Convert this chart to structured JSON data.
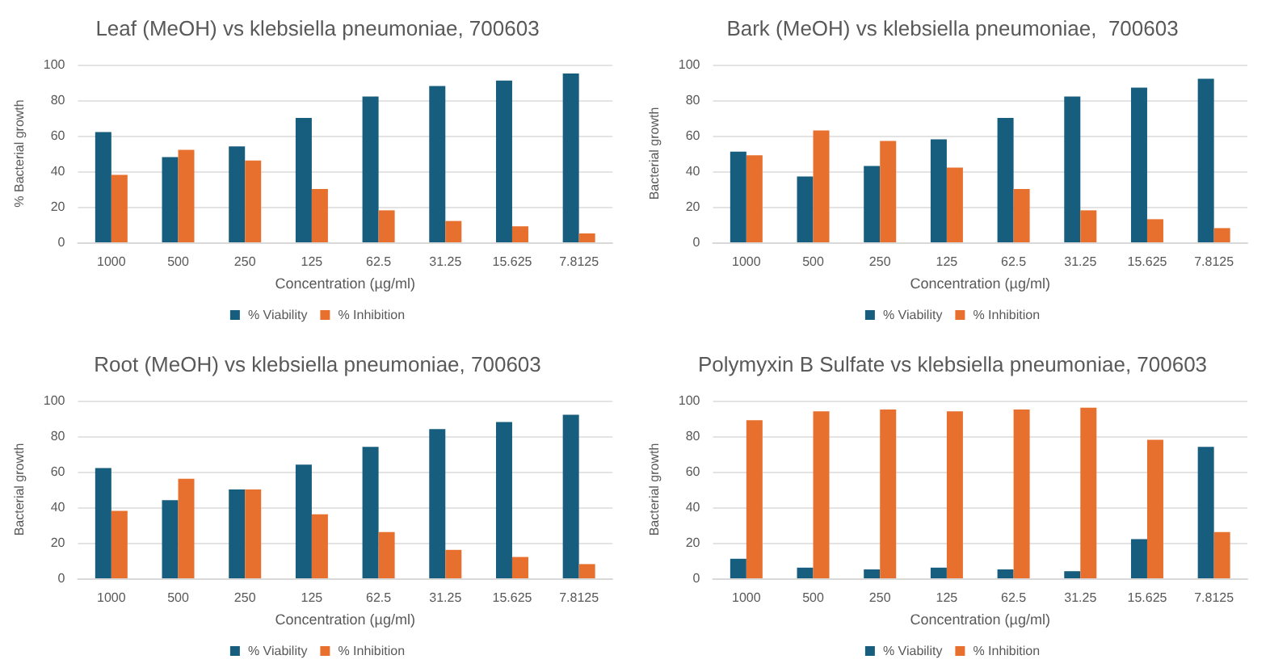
{
  "chart_data": [
    {
      "type": "bar",
      "title": "Leaf (MeOH) vs klebsiella pneumoniae, 700603",
      "xlabel": "Concentration (µg/ml)",
      "ylabel": "% Bacterial growth",
      "categories": [
        "1000",
        "500",
        "250",
        "125",
        "62.5",
        "31.25",
        "15.625",
        "7.8125"
      ],
      "series": [
        {
          "name": "% Viability",
          "color": "#175e7e",
          "values": [
            62,
            48,
            54,
            70,
            82,
            88,
            91,
            95
          ]
        },
        {
          "name": "% Inhibition",
          "color": "#e8702e",
          "values": [
            38,
            52,
            46,
            30,
            18,
            12,
            9,
            5
          ]
        }
      ],
      "ylim": [
        0,
        100
      ],
      "yticks": [
        0,
        20,
        40,
        60,
        80,
        100
      ],
      "grid": "y",
      "legend": "bottom"
    },
    {
      "type": "bar",
      "title": "Bark (MeOH) vs klebsiella pneumoniae,  700603",
      "xlabel": "Concentration (µg/ml)",
      "ylabel": "Bacterial growth",
      "categories": [
        "1000",
        "500",
        "250",
        "125",
        "62.5",
        "31.25",
        "15.625",
        "7.8125"
      ],
      "series": [
        {
          "name": "% Viability",
          "color": "#175e7e",
          "values": [
            51,
            37,
            43,
            58,
            70,
            82,
            87,
            92
          ]
        },
        {
          "name": "% Inhibition",
          "color": "#e8702e",
          "values": [
            49,
            63,
            57,
            42,
            30,
            18,
            13,
            8
          ]
        }
      ],
      "ylim": [
        0,
        100
      ],
      "yticks": [
        0,
        20,
        40,
        60,
        80,
        100
      ],
      "grid": "y",
      "legend": "bottom"
    },
    {
      "type": "bar",
      "title": "Root (MeOH) vs klebsiella pneumoniae, 700603",
      "xlabel": "Concentration (µg/ml)",
      "ylabel": "Bacterial growth",
      "categories": [
        "1000",
        "500",
        "250",
        "125",
        "62.5",
        "31.25",
        "15.625",
        "7.8125"
      ],
      "series": [
        {
          "name": "% Viability",
          "color": "#175e7e",
          "values": [
            62,
            44,
            50,
            64,
            74,
            84,
            88,
            92
          ]
        },
        {
          "name": "% Inhibition",
          "color": "#e8702e",
          "values": [
            38,
            56,
            50,
            36,
            26,
            16,
            12,
            8
          ]
        }
      ],
      "ylim": [
        0,
        100
      ],
      "yticks": [
        0,
        20,
        40,
        60,
        80,
        100
      ],
      "grid": "y",
      "legend": "bottom"
    },
    {
      "type": "bar",
      "title": "Polymyxin B Sulfate vs klebsiella pneumoniae, 700603",
      "xlabel": "Concentration (µg/ml)",
      "ylabel": "Bacterial growth",
      "categories": [
        "1000",
        "500",
        "250",
        "125",
        "62.5",
        "31.25",
        "15.625",
        "7.8125"
      ],
      "series": [
        {
          "name": "% Viability",
          "color": "#175e7e",
          "values": [
            11,
            6,
            5,
            6,
            5,
            4,
            22,
            74
          ]
        },
        {
          "name": "% Inhibition",
          "color": "#e8702e",
          "values": [
            89,
            94,
            95,
            94,
            95,
            96,
            78,
            26
          ]
        }
      ],
      "ylim": [
        0,
        100
      ],
      "yticks": [
        0,
        20,
        40,
        60,
        80,
        100
      ],
      "grid": "y",
      "legend": "bottom"
    }
  ]
}
